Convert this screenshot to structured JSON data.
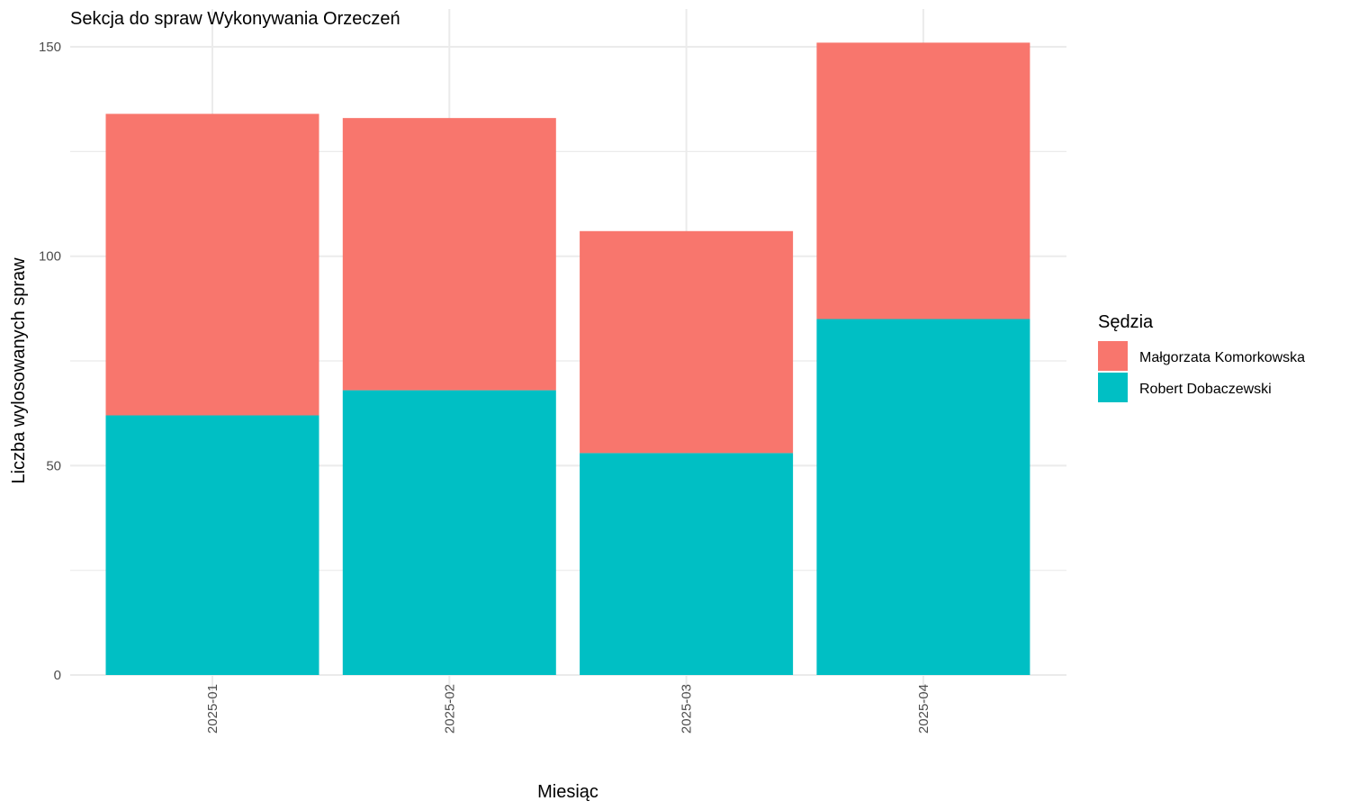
{
  "chart_data": {
    "type": "bar",
    "stacked": true,
    "title": "Sekcja do spraw Wykonywania Orzeczeń",
    "xlabel": "Miesiąc",
    "ylabel": "Liczba wylosowanych spraw",
    "categories": [
      "2025-01",
      "2025-02",
      "2025-03",
      "2025-04"
    ],
    "series": [
      {
        "name": "Robert Dobaczewski",
        "color": "#00BFC4",
        "values": [
          62,
          68,
          53,
          85
        ]
      },
      {
        "name": "Małgorzata Komorkowska",
        "color": "#F8766D",
        "values": [
          72,
          65,
          53,
          66
        ]
      }
    ],
    "ylim": [
      0,
      155
    ],
    "yticks": [
      0,
      50,
      100,
      150
    ],
    "grid": true,
    "legend": {
      "title": "Sędzia",
      "position": "right",
      "entries": [
        "Małgorzata Komorkowska",
        "Robert Dobaczewski"
      ]
    }
  }
}
